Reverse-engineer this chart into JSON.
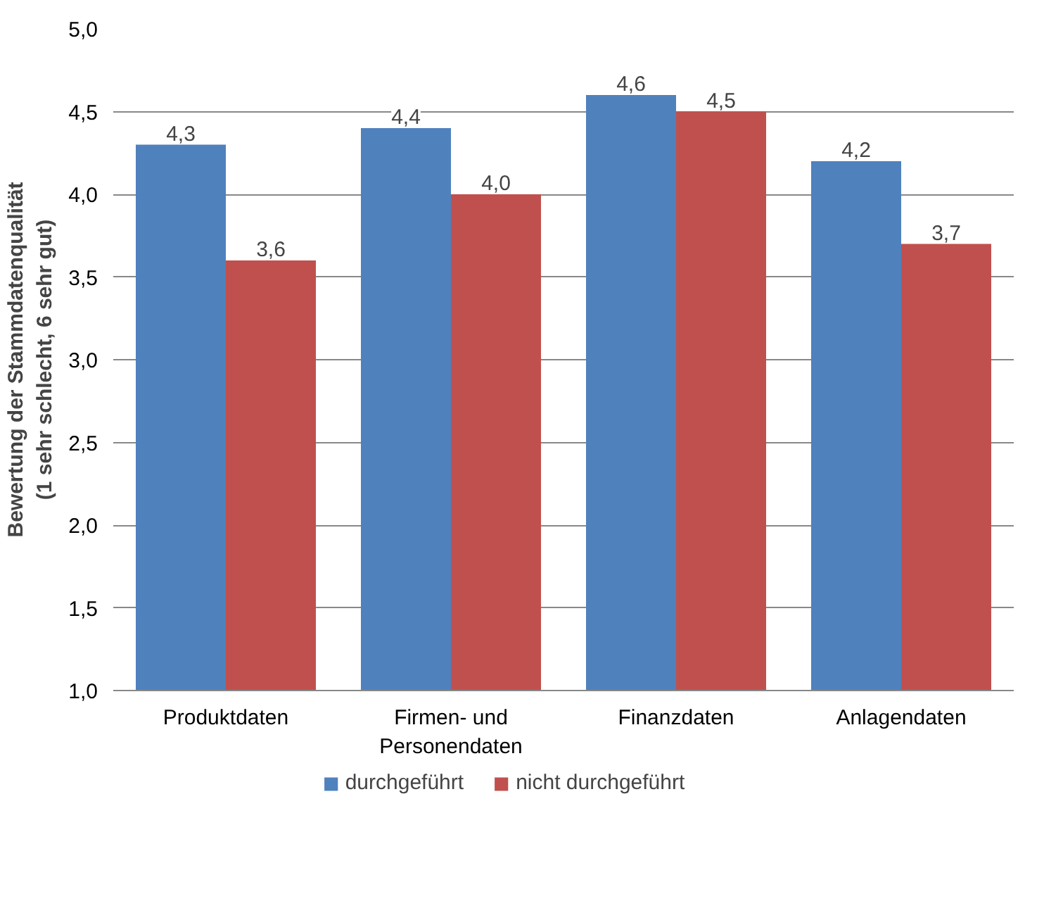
{
  "chart_data": {
    "type": "bar",
    "ylabel": "Bewertung der Stammdatenqualität\n(1 sehr schlecht, 6 sehr gut)",
    "categories": [
      "Produktdaten",
      "Firmen- und\nPersonendaten",
      "Finanzdaten",
      "Anlagendaten"
    ],
    "series": [
      {
        "name": "durchgeführt",
        "color": "#4f81bd",
        "values": [
          4.3,
          4.4,
          4.6,
          4.2
        ],
        "value_labels": [
          "4,3",
          "4,4",
          "4,6",
          "4,2"
        ]
      },
      {
        "name": "nicht durchgeführt",
        "color": "#c0504d",
        "values": [
          3.6,
          4.0,
          4.5,
          3.7
        ],
        "value_labels": [
          "3,6",
          "4,0",
          "4,5",
          "3,7"
        ]
      }
    ],
    "ylim": [
      1.0,
      5.0
    ],
    "yticks": [
      {
        "value": 1.0,
        "label": "1,0"
      },
      {
        "value": 1.5,
        "label": "1,5"
      },
      {
        "value": 2.0,
        "label": "2,0"
      },
      {
        "value": 2.5,
        "label": "2,5"
      },
      {
        "value": 3.0,
        "label": "3,0"
      },
      {
        "value": 3.5,
        "label": "3,5"
      },
      {
        "value": 4.0,
        "label": "4,0"
      },
      {
        "value": 4.5,
        "label": "4,5"
      },
      {
        "value": 5.0,
        "label": "5,0"
      }
    ],
    "grid": "y",
    "legend": "bottom"
  }
}
